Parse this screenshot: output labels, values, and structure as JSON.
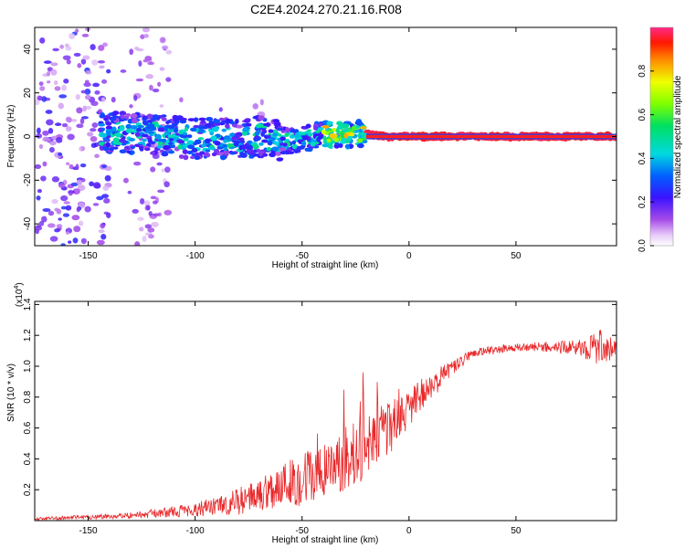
{
  "title": "C2E4.2024.270.21.16.R08",
  "chart_data": [
    {
      "type": "heatmap",
      "xlabel": "Height of straight line (km)",
      "ylabel": "Frequency (Hz)",
      "xlim": [
        -175,
        97
      ],
      "ylim": [
        -50,
        50
      ],
      "x_ticks": [
        -150,
        -100,
        -50,
        0,
        50
      ],
      "x_tick_labels": [
        "-150",
        "-100",
        "-50",
        "0",
        "50"
      ],
      "y_ticks": [
        -40,
        -20,
        0,
        20,
        40
      ],
      "y_tick_labels": [
        "-40",
        "-20",
        "0",
        "20",
        "40"
      ],
      "colorbar": {
        "label": "Normalized spectral amplitude",
        "range": [
          0,
          1
        ],
        "ticks": [
          0.0,
          0.2,
          0.4,
          0.6,
          0.8
        ],
        "tick_labels": [
          "0.0",
          "0.2",
          "0.4",
          "0.6",
          "0.8"
        ]
      },
      "ridge": [
        {
          "x": -140,
          "y": 2
        },
        {
          "x": -120,
          "y": 1
        },
        {
          "x": -100,
          "y": -1
        },
        {
          "x": -80,
          "y": -1
        },
        {
          "x": -70,
          "y": 0
        },
        {
          "x": -60,
          "y": -2
        },
        {
          "x": -50,
          "y": -1
        },
        {
          "x": -40,
          "y": 1
        },
        {
          "x": -30,
          "y": 1
        },
        {
          "x": -20,
          "y": 1
        },
        {
          "x": -10,
          "y": 0
        },
        {
          "x": 0,
          "y": 0
        },
        {
          "x": 50,
          "y": 0
        },
        {
          "x": 95,
          "y": 0
        }
      ]
    },
    {
      "type": "line",
      "xlabel": "Height of straight line (km)",
      "ylabel": "SNR (10 * v/v)",
      "y_exponent_label": "(x10",
      "y_exponent_power": "4",
      "y_exponent_close": ")",
      "xlim": [
        -175,
        97
      ],
      "ylim": [
        0,
        1.42
      ],
      "x_ticks": [
        -150,
        -100,
        -50,
        0,
        50
      ],
      "x_tick_labels": [
        "-150",
        "-100",
        "-50",
        "0",
        "50"
      ],
      "y_ticks": [
        0.2,
        0.4,
        0.6,
        0.8,
        1.0,
        1.2,
        1.4
      ],
      "y_tick_labels": [
        "0.2",
        "0.4",
        "0.6",
        "0.8",
        "1.0",
        "1.2",
        "1.4"
      ],
      "series": [
        {
          "name": "SNR",
          "color": "#e8282a",
          "envelope": [
            {
              "x": -175,
              "base": 0.01,
              "amp": 0.02
            },
            {
              "x": -150,
              "base": 0.02,
              "amp": 0.03
            },
            {
              "x": -130,
              "base": 0.03,
              "amp": 0.04
            },
            {
              "x": -110,
              "base": 0.05,
              "amp": 0.07
            },
            {
              "x": -90,
              "base": 0.08,
              "amp": 0.12
            },
            {
              "x": -75,
              "base": 0.12,
              "amp": 0.2
            },
            {
              "x": -60,
              "base": 0.2,
              "amp": 0.28
            },
            {
              "x": -45,
              "base": 0.25,
              "amp": 0.4
            },
            {
              "x": -35,
              "base": 0.3,
              "amp": 0.35
            },
            {
              "x": -20,
              "base": 0.45,
              "amp": 0.45
            },
            {
              "x": -10,
              "base": 0.55,
              "amp": 0.35
            },
            {
              "x": 0,
              "base": 0.7,
              "amp": 0.25
            },
            {
              "x": 10,
              "base": 0.85,
              "amp": 0.2
            },
            {
              "x": 20,
              "base": 0.98,
              "amp": 0.1
            },
            {
              "x": 30,
              "base": 1.08,
              "amp": 0.06
            },
            {
              "x": 45,
              "base": 1.11,
              "amp": 0.05
            },
            {
              "x": 60,
              "base": 1.12,
              "amp": 0.06
            },
            {
              "x": 80,
              "base": 1.11,
              "amp": 0.1
            },
            {
              "x": 88,
              "base": 1.1,
              "amp": 0.25
            },
            {
              "x": 97,
              "base": 1.1,
              "amp": 0.12
            }
          ]
        }
      ]
    }
  ]
}
